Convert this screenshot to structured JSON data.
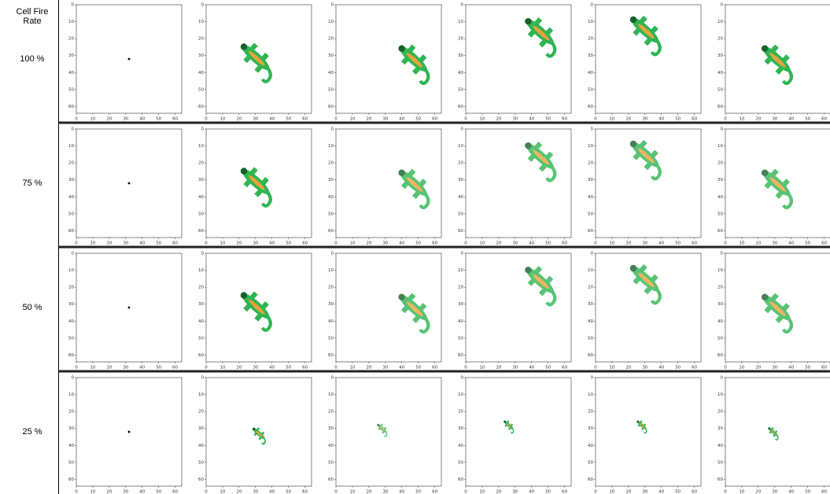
{
  "header": {
    "title": "Cell Fire Rate"
  },
  "rows": [
    {
      "label": "100 %"
    },
    {
      "label": "75 %"
    },
    {
      "label": "50 %"
    },
    {
      "label": "25 %"
    }
  ],
  "panel_axes": {
    "xticks": [
      0,
      10,
      20,
      30,
      40,
      50,
      60
    ],
    "yticks": [
      0,
      10,
      20,
      30,
      40,
      50,
      60
    ]
  }
}
